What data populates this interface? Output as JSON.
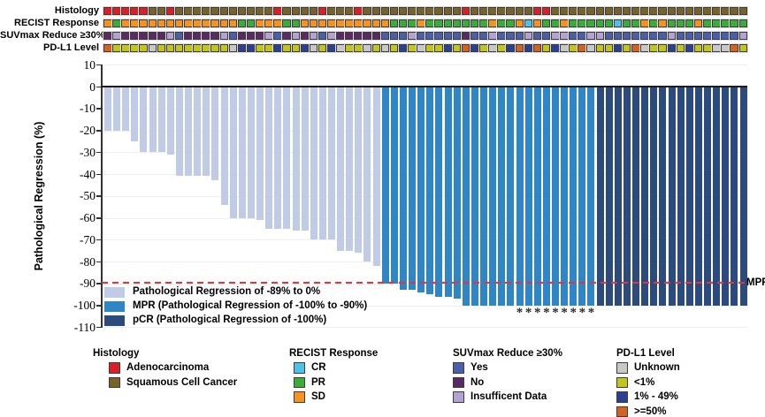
{
  "tracks": {
    "list": [
      {
        "label": "Histology",
        "palette": {
          "A": "#DC1F26",
          "S": "#77622A"
        },
        "code_meanings": {
          "A": "Adenocarcinoma",
          "S": "Squamous Cell Cancer"
        },
        "sequence": "AAAAASSASSSSSSSSSSSASSSSASSSASSSSSSSSSSSASSSSSSSAASSSSSSSSSSSSSSSSSSSSSS"
      },
      {
        "label": "RECIST Response",
        "palette": {
          "D": "#F6921E",
          "P": "#3AAC3A",
          "C": "#4EC1E8"
        },
        "code_meanings": {
          "D": "SD",
          "P": "PR",
          "C": "CR"
        },
        "sequence": "DPDDDDDDDDDDDDDPPDDDPPDDDDDDDDDDPPPDPPPPPPPDPPDCDPPDPPPPPCPPDPDPPPDPPPPP"
      },
      {
        "label": "SUVmax Reduce ≥30%",
        "palette": {
          "Y": "#4A5EA9",
          "N": "#5B2A64",
          "I": "#B4A2D2"
        },
        "code_meanings": {
          "Y": "Yes",
          "N": "No",
          "I": "Insufficent Data"
        },
        "sequence": "NINNNNNIYNNNNIYNNNIYNINIYINNNNNYYYIYYYYYNYYIYYYIYYIIYYIIYYYYYYYIYYYYYYYI"
      },
      {
        "label": "PD-L1 Level",
        "palette": {
          "U": "#C8C8C8",
          "L": "#C2C51C",
          "M": "#2B3F93",
          "H": "#D4631F"
        },
        "code_meanings": {
          "U": "Unknown",
          "L": "<1%",
          "M": "1% - 49%",
          "H": ">=50%"
        },
        "sequence": "HLLLLULLLLLLLLUMMLLMLLMULMULLULULMLULLMLHMLULMHMHLMULHULLMLHULLMLMLLUUHL"
      }
    ]
  },
  "chart_data": {
    "type": "bar",
    "title": "",
    "xlabel": "",
    "ylabel": "Pathological Regression (%)",
    "ylim": [
      -110,
      10
    ],
    "yticks": [
      10,
      0,
      -10,
      -20,
      -30,
      -40,
      -50,
      -60,
      -70,
      -80,
      -90,
      -100,
      -110
    ],
    "grid": true,
    "values": [
      -20,
      -20,
      -20,
      -25,
      -30,
      -30,
      -30,
      -31,
      -41,
      -41,
      -41,
      -41,
      -43,
      -54,
      -60,
      -60,
      -60,
      -61,
      -65,
      -65,
      -65,
      -66,
      -66,
      -70,
      -70,
      -70,
      -75,
      -75,
      -76,
      -80,
      -82,
      -90,
      -90,
      -93,
      -93,
      -94,
      -95,
      -96,
      -96,
      -97,
      -100,
      -100,
      -100,
      -100,
      -100,
      -100,
      -100,
      -100,
      -100,
      -100,
      -100,
      -100,
      -100,
      -100,
      -100,
      -100,
      -100,
      -100,
      -100,
      -100,
      -100,
      -100,
      -100,
      -100,
      -100,
      -100,
      -100,
      -100,
      -100,
      -100,
      -100,
      -100
    ],
    "bar_groups": [
      {
        "name": "reg",
        "label": "Pathological Regression of -89% to 0%",
        "color": "#C0CCE6",
        "count": 31
      },
      {
        "name": "mpr",
        "label": "MPR (Pathological Regression of -100% to -90%)",
        "color": "#2E86C6",
        "count": 24
      },
      {
        "name": "pcr",
        "label": "pCR (Pathological Regression of -100%)",
        "color": "#2B4B7E",
        "count": 17
      }
    ],
    "mpr_line": {
      "value": -90,
      "label": "MPR",
      "color": "#F03131"
    },
    "asterisk_bars": [
      47,
      48,
      49,
      50,
      51,
      52,
      53,
      54,
      55
    ],
    "asterisk_symbol": "*",
    "legend_position": "inside-bottom-left"
  },
  "bottom_legends": [
    {
      "title": "Histology",
      "items": [
        {
          "label": "Adenocarcinoma",
          "color": "#DC1F26"
        },
        {
          "label": "Squamous Cell Cancer",
          "color": "#77622A"
        }
      ]
    },
    {
      "title": "RECIST Response",
      "items": [
        {
          "label": "CR",
          "color": "#4EC1E8"
        },
        {
          "label": "PR",
          "color": "#3AAC3A"
        },
        {
          "label": "SD",
          "color": "#F6921E"
        }
      ]
    },
    {
      "title": "SUVmax Reduce ≥30%",
      "items": [
        {
          "label": "Yes",
          "color": "#4A5EA9"
        },
        {
          "label": "No",
          "color": "#5B2A64"
        },
        {
          "label": "Insufficent Data",
          "color": "#B4A2D2"
        }
      ]
    },
    {
      "title": "PD-L1 Level",
      "items": [
        {
          "label": "Unknown",
          "color": "#C8C8C8"
        },
        {
          "label": "<1%",
          "color": "#C2C51C"
        },
        {
          "label": "1% - 49%",
          "color": "#2B3F93"
        },
        {
          "label": ">=50%",
          "color": "#D4631F"
        }
      ]
    }
  ]
}
